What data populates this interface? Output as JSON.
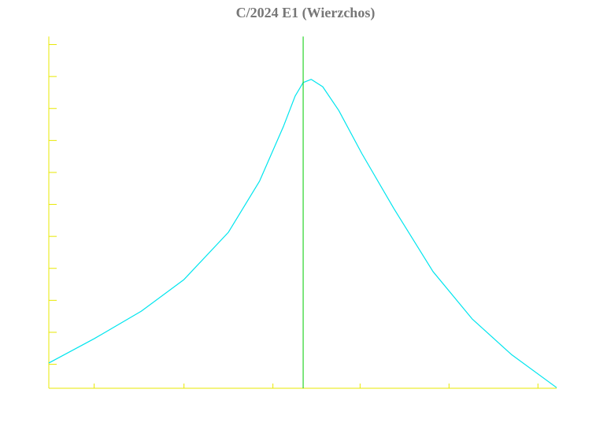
{
  "chart_data": {
    "type": "line",
    "title": "C/2024 E1 (Wierzchos)",
    "x": [
      0,
      0.51,
      1.04,
      1.52,
      2.02,
      2.37,
      2.64,
      2.77,
      2.86,
      2.95,
      3.08,
      3.26,
      3.52,
      3.88,
      4.32,
      4.76,
      5.2,
      5.71
    ],
    "series": [
      {
        "name": "C/2024 E1 (Wierzchos)",
        "color": "#00e5ee",
        "values": [
          0.79,
          1.55,
          2.41,
          3.4,
          4.88,
          6.48,
          8.2,
          9.14,
          9.56,
          9.66,
          9.43,
          8.69,
          7.34,
          5.62,
          3.65,
          2.17,
          1.06,
          0.02
        ]
      }
    ],
    "marker_x": 2.86,
    "marker_color": "#00cc00",
    "axis_color": "#e8e800",
    "xlim": [
      0,
      5.71
    ],
    "ylim": [
      0,
      11
    ],
    "xticks": [
      0.51,
      1.52,
      2.52,
      3.5,
      4.5,
      5.5
    ],
    "yticks": [
      0.75,
      1.75,
      2.75,
      3.75,
      4.75,
      5.75,
      6.75,
      7.75,
      8.75,
      9.75,
      10.75
    ]
  }
}
